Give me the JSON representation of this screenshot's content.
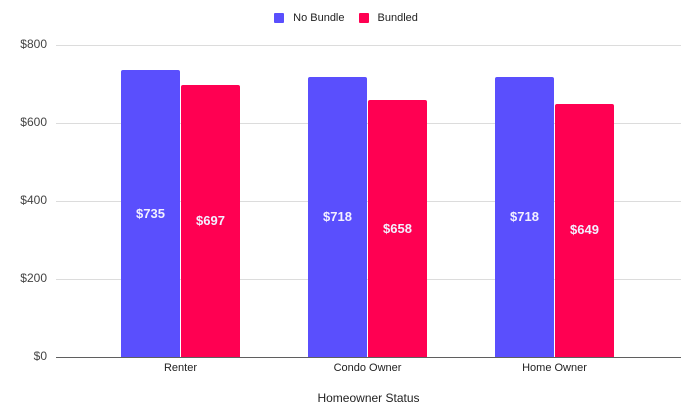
{
  "chart_data": {
    "type": "bar",
    "title": "",
    "xlabel": "Homeowner Status",
    "ylabel": "",
    "categories": [
      "Renter",
      "Condo Owner",
      "Home Owner"
    ],
    "series": [
      {
        "name": "No Bundle",
        "color": "#5a4ffd",
        "values": [
          735,
          718,
          718
        ],
        "labels": [
          "$735",
          "$718",
          "$718"
        ]
      },
      {
        "name": "Bundled",
        "color": "#ff0052",
        "values": [
          697,
          658,
          649
        ],
        "labels": [
          "$697",
          "$658",
          "$649"
        ]
      }
    ],
    "ylim": [
      0,
      800
    ],
    "yticks": [
      0,
      200,
      400,
      600,
      800
    ],
    "ytick_labels": [
      "$0",
      "$200",
      "$400",
      "$600",
      "$800"
    ],
    "grid": true,
    "legend_position": "top"
  },
  "legend": {
    "items": [
      {
        "label": "No Bundle",
        "color": "#5a4ffd"
      },
      {
        "label": "Bundled",
        "color": "#ff0052"
      }
    ]
  }
}
